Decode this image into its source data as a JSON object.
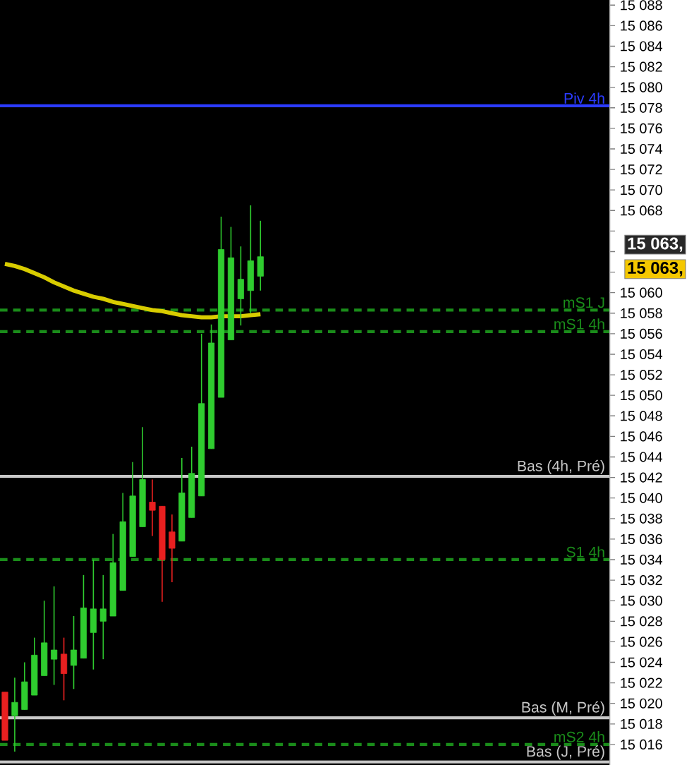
{
  "chart_data": {
    "type": "candlestick",
    "categories": [
      null,
      null,
      null,
      null,
      null,
      null,
      null,
      null,
      null,
      null,
      null,
      null,
      null,
      null,
      null,
      null,
      null,
      null,
      null,
      null,
      null,
      null,
      null,
      null,
      null,
      null,
      null,
      null,
      null,
      null,
      null,
      null,
      null,
      null,
      null,
      null,
      null,
      null,
      null,
      null,
      null,
      null,
      null,
      null,
      null,
      null,
      null,
      null,
      null,
      null,
      null,
      null,
      null,
      null,
      null,
      null,
      null,
      null,
      null,
      null,
      null,
      null
    ],
    "ohlc": [
      [
        15021.1,
        15021.1,
        15016.4,
        15016.4
      ],
      [
        15018.8,
        15022.5,
        15015.3,
        15020.1
      ],
      [
        15019.4,
        15024.0,
        15019.4,
        15022.1
      ],
      [
        15020.8,
        15026.4,
        15020.8,
        15024.7
      ],
      [
        15022.7,
        15030.0,
        15022.7,
        15025.9
      ],
      [
        15024.3,
        15031.4,
        15021.8,
        15025.2
      ],
      [
        15024.8,
        15026.4,
        15020.3,
        15022.9
      ],
      [
        15023.7,
        15028.5,
        15021.4,
        15025.2
      ],
      [
        15024.4,
        15032.5,
        15024.4,
        15029.3
      ],
      [
        15026.9,
        15034.0,
        15023.3,
        15029.2
      ],
      [
        15028.0,
        15032.5,
        15024.3,
        15029.2
      ],
      [
        15028.5,
        15036.5,
        15028.5,
        15033.7
      ],
      [
        15031.0,
        15040.5,
        15031.0,
        15037.7
      ],
      [
        15034.3,
        15043.5,
        15034.3,
        15040.2
      ],
      [
        15037.2,
        15046.9,
        15037.2,
        15041.8
      ],
      [
        15039.6,
        15041.8,
        15036.3,
        15038.8
      ],
      [
        15039.2,
        15039.2,
        15029.9,
        15034.0
      ],
      [
        15036.7,
        15038.4,
        15031.8,
        15035.1
      ],
      [
        15035.8,
        15043.9,
        15035.8,
        15040.5
      ],
      [
        15038.1,
        15045.0,
        15038.1,
        15042.4
      ],
      [
        15040.2,
        15056.0,
        15040.2,
        15049.2
      ],
      [
        15044.8,
        15056.9,
        15044.8,
        15055.1
      ],
      [
        15049.8,
        15067.4,
        15049.8,
        15064.2
      ],
      [
        15055.4,
        15066.4,
        15055.4,
        15063.4
      ],
      [
        15059.4,
        15064.5,
        15056.8,
        15061.3
      ],
      [
        15060.2,
        15068.5,
        15058.0,
        15063.1
      ],
      [
        15061.6,
        15067.0,
        15060.2,
        15063.5
      ],
      null,
      null,
      null,
      null,
      null,
      null,
      null,
      null,
      null,
      null,
      null,
      null,
      null,
      null,
      null,
      null,
      null,
      null,
      null,
      null,
      null,
      null,
      null,
      null,
      null,
      null,
      null,
      null,
      null,
      null,
      null,
      null,
      null,
      null,
      null
    ],
    "colors": [
      "#e82020",
      "#2fcc2f",
      "#2fcc2f",
      "#2fcc2f",
      "#2fcc2f",
      "#2fcc2f",
      "#e82020",
      "#2fcc2f",
      "#2fcc2f",
      "#2fcc2f",
      "#2fcc2f",
      "#2fcc2f",
      "#2fcc2f",
      "#2fcc2f",
      "#2fcc2f",
      "#e82020",
      "#e82020",
      "#e82020",
      "#2fcc2f",
      "#2fcc2f",
      "#2fcc2f",
      "#2fcc2f",
      "#2fcc2f",
      "#2fcc2f",
      "#2fcc2f",
      "#2fcc2f",
      "#2fcc2f",
      null,
      null,
      null,
      null,
      null,
      null,
      null,
      null,
      null,
      null,
      null,
      null,
      null,
      null,
      null,
      null,
      null,
      null,
      null,
      null,
      null,
      null,
      null,
      null,
      null,
      null,
      null,
      null,
      null,
      null,
      null,
      null,
      null,
      null,
      null
    ],
    "series": [
      {
        "type": "line",
        "color": "#d8cc00",
        "values": [
          15062.8,
          15062.6,
          15062.3,
          15061.9,
          15061.5,
          15061.0,
          15060.6,
          15060.2,
          15059.9,
          15059.6,
          15059.4,
          15059.1,
          15058.9,
          15058.7,
          15058.5,
          15058.3,
          15058.2,
          15058.0,
          15057.8,
          15057.7,
          15057.6,
          15057.6,
          15057.7,
          15057.7,
          15057.7,
          15057.8,
          15057.9,
          null,
          null,
          null,
          null,
          null,
          null,
          null,
          null,
          null,
          null,
          null,
          null,
          null,
          null,
          null,
          null,
          null,
          null,
          null,
          null,
          null,
          null,
          null,
          null,
          null,
          null,
          null,
          null,
          null,
          null,
          null,
          null,
          null,
          null,
          null
        ]
      }
    ],
    "ylim": [
      15014,
      15088.5
    ],
    "yticks": [
      {
        "value": 15016,
        "label": "15 016"
      },
      {
        "value": 15018,
        "label": "15 018"
      },
      {
        "value": 15020,
        "label": "15 020"
      },
      {
        "value": 15022,
        "label": "15 022"
      },
      {
        "value": 15024,
        "label": "15 024"
      },
      {
        "value": 15026,
        "label": "15 026"
      },
      {
        "value": 15028,
        "label": "15 028"
      },
      {
        "value": 15030,
        "label": "15 030"
      },
      {
        "value": 15032,
        "label": "15 032"
      },
      {
        "value": 15034,
        "label": "15 034"
      },
      {
        "value": 15036,
        "label": "15 036"
      },
      {
        "value": 15038,
        "label": "15 038"
      },
      {
        "value": 15040,
        "label": "15 040"
      },
      {
        "value": 15042,
        "label": "15 042"
      },
      {
        "value": 15044,
        "label": "15 044"
      },
      {
        "value": 15046,
        "label": "15 046"
      },
      {
        "value": 15048,
        "label": "15 048"
      },
      {
        "value": 15050,
        "label": "15 050"
      },
      {
        "value": 15052,
        "label": "15 052"
      },
      {
        "value": 15054,
        "label": "15 054"
      },
      {
        "value": 15056,
        "label": "15 056"
      },
      {
        "value": 15058,
        "label": "15 058"
      },
      {
        "value": 15060,
        "label": "15 060"
      },
      {
        "value": 15062,
        "label": null
      },
      {
        "value": 15064,
        "label": null
      },
      {
        "value": 15066,
        "label": null
      },
      {
        "value": 15068,
        "label": "15 068"
      },
      {
        "value": 15070,
        "label": "15 070"
      },
      {
        "value": 15072,
        "label": "15 072"
      },
      {
        "value": 15074,
        "label": "15 074"
      },
      {
        "value": 15076,
        "label": "15 076"
      },
      {
        "value": 15078,
        "label": "15 078"
      },
      {
        "value": 15080,
        "label": "15 080"
      },
      {
        "value": 15082,
        "label": "15 082"
      },
      {
        "value": 15084,
        "label": "15 084"
      },
      {
        "value": 15086,
        "label": "15 086"
      },
      {
        "value": 15088,
        "label": "15 088"
      }
    ],
    "tick_labels": "y",
    "ref_lines": [
      {
        "axis": "y",
        "value": 15078.2,
        "label": "Piv 4h",
        "color": "#2b3bff",
        "line_style": "solid"
      },
      {
        "axis": "y",
        "value": 15058.3,
        "label": "mS1 J",
        "color": "#1a8c1a",
        "line_style": "dashed"
      },
      {
        "axis": "y",
        "value": 15056.2,
        "label": "mS1 4h",
        "color": "#1a8c1a",
        "line_style": "dashed"
      },
      {
        "axis": "y",
        "value": 15042.1,
        "label": "Bas (4h, Pré)",
        "color": "#c8c8c8",
        "line_style": "solid"
      },
      {
        "axis": "y",
        "value": 15034.0,
        "label": "S1 4h",
        "color": "#1a8c1a",
        "line_style": "dashed"
      },
      {
        "axis": "y",
        "value": 15018.6,
        "label": "Bas (M, Pré)",
        "color": "#c8c8c8",
        "line_style": "solid"
      },
      {
        "axis": "y",
        "value": 15016.0,
        "label": "mS2 4h",
        "color": "#1a8c1a",
        "line_style": "dashed"
      },
      {
        "axis": "y",
        "value": 15014.3,
        "label": "Bas (J, Pré)",
        "color": "#c8c8c8",
        "line_style": "solid"
      }
    ],
    "annotations": [
      "15 063,",
      "15 063,"
    ]
  }
}
